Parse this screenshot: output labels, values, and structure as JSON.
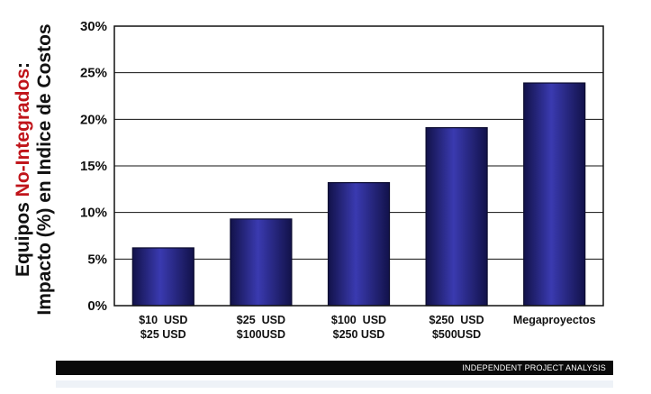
{
  "chart_data": {
    "type": "bar",
    "categories": [
      [
        "$10  USD",
        "$25 USD"
      ],
      [
        "$25  USD",
        "$100USD"
      ],
      [
        "$100  USD",
        "$250 USD"
      ],
      [
        "$250  USD",
        "$500USD"
      ],
      [
        "Megaproyectos"
      ]
    ],
    "values": [
      6.2,
      9.3,
      13.2,
      19.1,
      23.9
    ],
    "ylim": [
      0,
      30
    ],
    "yticks": [
      0,
      5,
      10,
      15,
      20,
      25,
      30
    ],
    "ytick_labels": [
      "0%",
      "5%",
      "10%",
      "15%",
      "20%",
      "25%",
      "30%"
    ],
    "ylabel": {
      "line1_prefix": "Equipos ",
      "line1_highlight": "No-Integrados",
      "line1_suffix": ":",
      "line2": "Impacto (%) en Indice de Costos"
    },
    "grid": true,
    "legend": "none",
    "colors": {
      "bar_dark": "#1a1a5e",
      "bar_mid": "#3535a8",
      "highlight": "#c0141a"
    }
  },
  "footer": {
    "text": "INDEPENDENT PROJECT ANALYSIS"
  }
}
